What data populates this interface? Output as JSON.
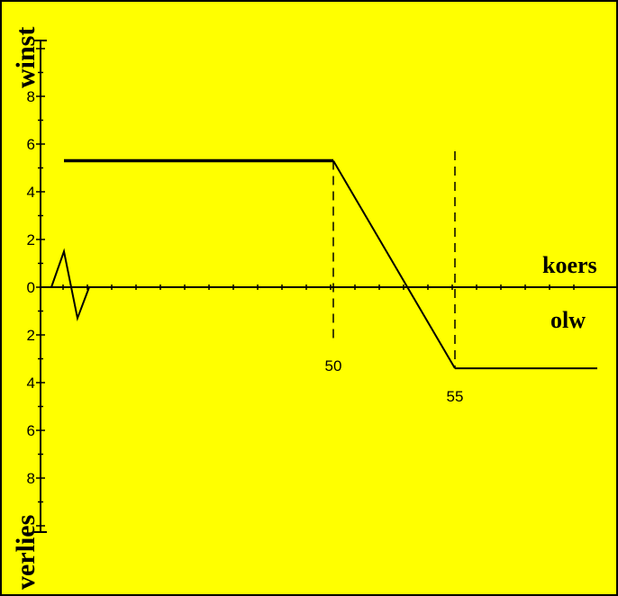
{
  "colors": {
    "background": "#ffff00",
    "border": "#000000",
    "line": "#000000"
  },
  "chart_data": {
    "type": "line",
    "title": "",
    "y_top_label": "winst",
    "y_bottom_label": "verlies",
    "x_axis_label_above": "koers",
    "x_axis_label_below": "olw",
    "y_tick_labels": [
      "8",
      "6",
      "4",
      "2",
      "0",
      "2",
      "4",
      "6",
      "8"
    ],
    "y_tick_values": [
      8,
      6,
      4,
      2,
      0,
      -2,
      -4,
      -6,
      -8
    ],
    "ylim": [
      -10,
      11
    ],
    "x_marker_labels": [
      "50",
      "55"
    ],
    "x_marker_values": [
      50,
      55
    ],
    "series": [
      {
        "style": "bold",
        "points": [
          [
            39,
            5.3
          ],
          [
            50,
            5.3
          ],
          [
            55,
            -3.4
          ],
          [
            61,
            -3.4
          ]
        ]
      }
    ],
    "guides": [
      {
        "x": 50,
        "from": 5.3,
        "to": -2.3,
        "style": "dashed"
      },
      {
        "x": 55,
        "from": 5.7,
        "to": -3.4,
        "style": "dashed"
      }
    ],
    "axis_break_marker": [
      [
        0,
        0
      ],
      [
        1,
        1.5
      ],
      [
        2,
        -1.3
      ],
      [
        3,
        0
      ]
    ]
  }
}
